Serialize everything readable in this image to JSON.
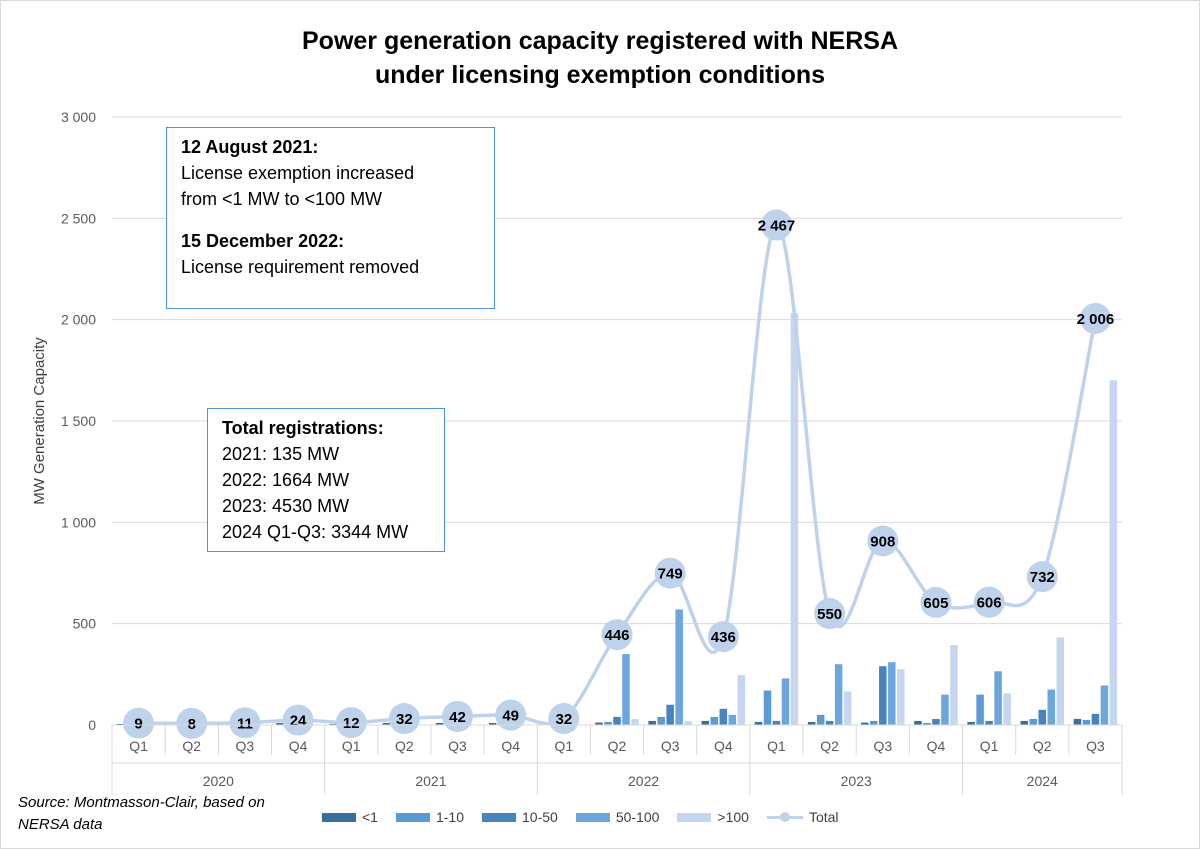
{
  "title_line1": "Power generation capacity registered with NERSA",
  "title_line2": "under licensing exemption conditions",
  "source": "Source: Montmasson-Clair, based on NERSA data",
  "notes": {
    "box1": {
      "date1": "12 August 2021:",
      "text1a": "License exemption increased",
      "text1b": "from <1 MW to <100 MW",
      "date2": "15 December 2022:",
      "text2": "License requirement removed"
    },
    "box2": {
      "heading": "Total registrations:",
      "lines": [
        "2021: 135 MW",
        "2022: 1664 MW",
        "2023: 4530 MW",
        "2024 Q1-Q3: 3344 MW"
      ]
    }
  },
  "colors": {
    "lt1": "#3a6f9d",
    "c1_10": "#5b9bd5",
    "c10_50": "#4683bf",
    "c50_100": "#6da6de",
    "gt100": "#c5d6ee",
    "total": "#bfd2ec",
    "grid": "#d9d9d9",
    "axis_text": "#595959"
  },
  "chart_data": {
    "type": "bar",
    "ylabel": "MW Generation Capacity",
    "ylim": [
      0,
      3000
    ],
    "yticks": [
      0,
      500,
      1000,
      1500,
      2000,
      2500,
      3000
    ],
    "ytick_labels": [
      "0",
      "500",
      "1 000",
      "1 500",
      "2 000",
      "2 500",
      "3 000"
    ],
    "years": [
      "2020",
      "2021",
      "2022",
      "2023",
      "2024"
    ],
    "categories": [
      "Q1",
      "Q2",
      "Q3",
      "Q4",
      "Q1",
      "Q2",
      "Q3",
      "Q4",
      "Q1",
      "Q2",
      "Q3",
      "Q4",
      "Q1",
      "Q2",
      "Q3",
      "Q4",
      "Q1",
      "Q2",
      "Q3"
    ],
    "series": [
      {
        "name": "<1",
        "values": [
          5,
          5,
          6,
          10,
          5,
          10,
          10,
          10,
          12,
          12,
          20,
          20,
          15,
          15,
          12,
          20,
          15,
          20,
          30
        ]
      },
      {
        "name": "1-10",
        "values": [
          4,
          3,
          5,
          14,
          7,
          12,
          15,
          15,
          10,
          15,
          40,
          40,
          170,
          50,
          20,
          10,
          150,
          30,
          25
        ]
      },
      {
        "name": "10-50",
        "values": [
          0,
          0,
          0,
          0,
          0,
          10,
          17,
          15,
          10,
          40,
          100,
          80,
          20,
          20,
          290,
          30,
          20,
          75,
          55
        ]
      },
      {
        "name": "50-100",
        "values": [
          0,
          0,
          0,
          0,
          0,
          0,
          0,
          9,
          0,
          350,
          570,
          50,
          230,
          300,
          310,
          150,
          265,
          175,
          195
        ]
      },
      {
        "name": ">100",
        "values": [
          0,
          0,
          0,
          0,
          0,
          0,
          0,
          0,
          0,
          29,
          19,
          246,
          2032,
          165,
          276,
          395,
          156,
          432,
          1701
        ]
      }
    ],
    "total": {
      "name": "Total",
      "values": [
        9,
        8,
        11,
        24,
        12,
        32,
        42,
        49,
        32,
        446,
        749,
        436,
        2467,
        550,
        908,
        605,
        606,
        732,
        2006
      ]
    },
    "total_labels": [
      "9",
      "8",
      "11",
      "24",
      "12",
      "32",
      "42",
      "49",
      "32",
      "446",
      "749",
      "436",
      "2 467",
      "550",
      "908",
      "605",
      "606",
      "732",
      "2 006"
    ],
    "legend": [
      "<1",
      "1-10",
      "10-50",
      "50-100",
      ">100",
      "Total"
    ]
  }
}
